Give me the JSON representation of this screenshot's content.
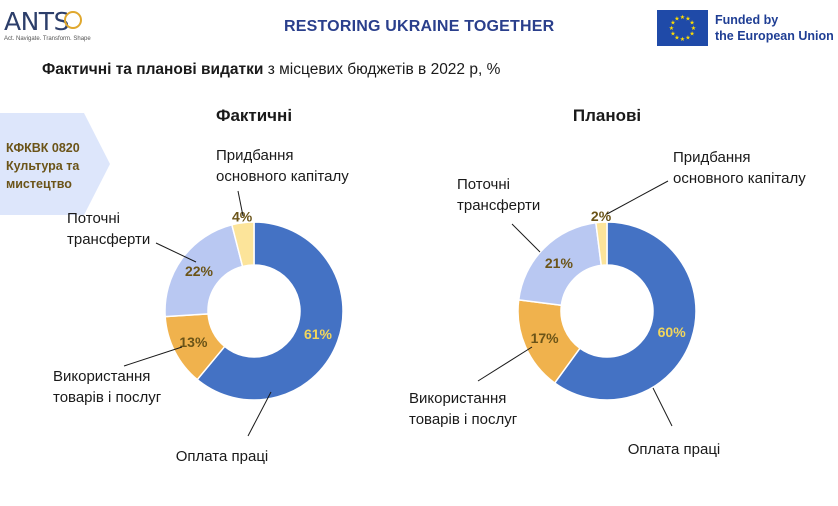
{
  "header": {
    "logo_text": "ANTS",
    "logo_tagline": "Act. Navigate. Transform. Shape",
    "title": "RESTORING UKRAINE TOGETHER",
    "eu_line1": "Funded by",
    "eu_line2": "the European Union"
  },
  "subtitle": {
    "bold": "Фактичні та планові видатки",
    "rest": " з місцевих бюджетів в 2022 р, %"
  },
  "code_box": {
    "line1": "КФКВК 0820",
    "line2": "Культура та",
    "line3": "мистецтво"
  },
  "colors": {
    "labor": "#4472c4",
    "goods": "#f0b24d",
    "transfers": "#b9c8f2",
    "capital": "#fce49a",
    "pct_light": "#f2d65c",
    "pct_dark": "#6b5418",
    "code_box_bg": "#dde6fb"
  },
  "chart_data": [
    {
      "type": "pie",
      "title": "Фактичні",
      "categories": [
        "Оплата праці",
        "Використання товарів і послуг",
        "Поточні трансферти",
        "Придбання основного капіталу"
      ],
      "values": [
        61,
        13,
        22,
        4
      ],
      "data_labels": [
        "61%",
        "13%",
        "22%",
        "4%"
      ],
      "label_lines": [
        [
          "Оплата праці"
        ],
        [
          "Використання",
          "товарів і послуг"
        ],
        [
          "Поточні",
          "трансферти"
        ],
        [
          "Придбання",
          "основного капіталу"
        ]
      ]
    },
    {
      "type": "pie",
      "title": "Планові",
      "categories": [
        "Оплата праці",
        "Використання товарів і послуг",
        "Поточні трансферти",
        "Придбання основного капіталу"
      ],
      "values": [
        60,
        17,
        21,
        2
      ],
      "data_labels": [
        "60%",
        "17%",
        "21%",
        "2%"
      ],
      "label_lines": [
        [
          "Оплата праці"
        ],
        [
          "Використання",
          "товарів і послуг"
        ],
        [
          "Поточні",
          "трансферти"
        ],
        [
          "Придбання",
          "основного капіталу"
        ]
      ]
    }
  ]
}
